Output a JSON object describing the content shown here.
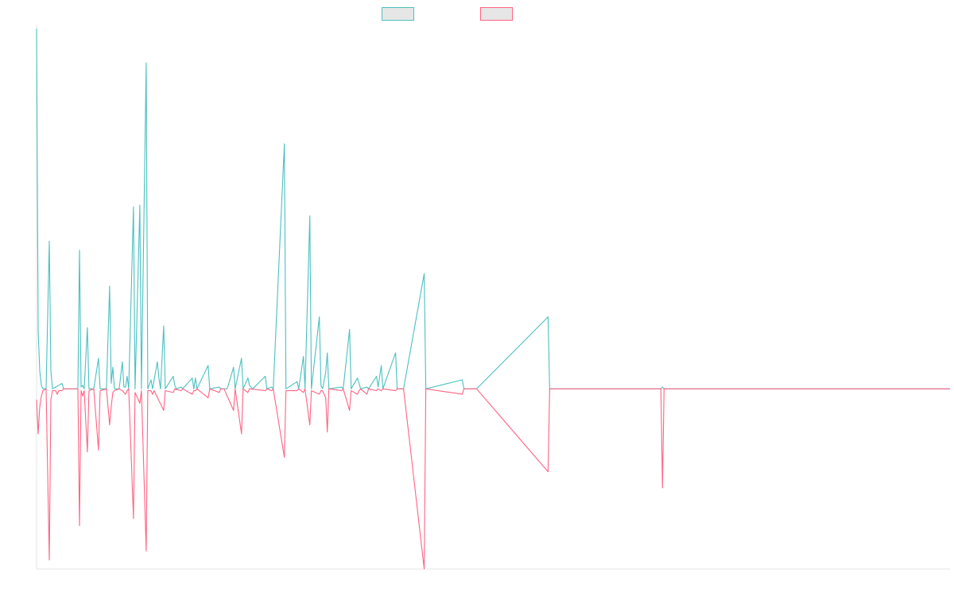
{
  "chart_data": {
    "type": "line",
    "title": "",
    "xlabel": "",
    "ylabel": "",
    "grid": false,
    "legend": {
      "placement": "top-center",
      "entries": [
        {
          "name": "",
          "stroke": "#4bc0c0",
          "fill": "#e6e6e6"
        },
        {
          "name": "",
          "stroke": "#ff6384",
          "fill": "#e6e6e6"
        }
      ]
    },
    "xlim": [
      0,
      575
    ],
    "ylim": [
      -100,
      200
    ],
    "series": [
      {
        "name": "",
        "color": "#4bc0c0",
        "points": [
          [
            0,
            200
          ],
          [
            1,
            32
          ],
          [
            2,
            10
          ],
          [
            3,
            2
          ],
          [
            4,
            0
          ],
          [
            6,
            0
          ],
          [
            8,
            82
          ],
          [
            9,
            10
          ],
          [
            10,
            0
          ],
          [
            12,
            1
          ],
          [
            14,
            2
          ],
          [
            16,
            3
          ],
          [
            17,
            0
          ],
          [
            20,
            0
          ],
          [
            26,
            0
          ],
          [
            27,
            77
          ],
          [
            28,
            1
          ],
          [
            29,
            2
          ],
          [
            30,
            0
          ],
          [
            32,
            34
          ],
          [
            33,
            0
          ],
          [
            36,
            0
          ],
          [
            39,
            17
          ],
          [
            40,
            0
          ],
          [
            44,
            0
          ],
          [
            46,
            57
          ],
          [
            47,
            3
          ],
          [
            48,
            12
          ],
          [
            49,
            0
          ],
          [
            52,
            0
          ],
          [
            54,
            15
          ],
          [
            55,
            1
          ],
          [
            56,
            1
          ],
          [
            57,
            7
          ],
          [
            58,
            0
          ],
          [
            61,
            101
          ],
          [
            62,
            0
          ],
          [
            65,
            102
          ],
          [
            66,
            0
          ],
          [
            69,
            181
          ],
          [
            70,
            0
          ],
          [
            72,
            5
          ],
          [
            73,
            0
          ],
          [
            76,
            15
          ],
          [
            77,
            6
          ],
          [
            78,
            0
          ],
          [
            80,
            35
          ],
          [
            81,
            0
          ],
          [
            86,
            7
          ],
          [
            87,
            2
          ],
          [
            88,
            0
          ],
          [
            91,
            1
          ],
          [
            92,
            0
          ],
          [
            98,
            6
          ],
          [
            99,
            0
          ],
          [
            100,
            6
          ],
          [
            101,
            0
          ],
          [
            108,
            13
          ],
          [
            109,
            0
          ],
          [
            115,
            1
          ],
          [
            116,
            0
          ],
          [
            118,
            0
          ],
          [
            120,
            0
          ],
          [
            124,
            12
          ],
          [
            125,
            0
          ],
          [
            129,
            17
          ],
          [
            130,
            0
          ],
          [
            133,
            6
          ],
          [
            134,
            2
          ],
          [
            135,
            1
          ],
          [
            136,
            0
          ],
          [
            144,
            7
          ],
          [
            145,
            0
          ],
          [
            148,
            1
          ],
          [
            149,
            0
          ],
          [
            156,
            136
          ],
          [
            157,
            0
          ],
          [
            164,
            4
          ],
          [
            165,
            0
          ],
          [
            168,
            18
          ],
          [
            169,
            0
          ],
          [
            172,
            96
          ],
          [
            173,
            0
          ],
          [
            178,
            40
          ],
          [
            179,
            2
          ],
          [
            180,
            0
          ],
          [
            182,
            9
          ],
          [
            183,
            20
          ],
          [
            184,
            0
          ],
          [
            192,
            1
          ],
          [
            193,
            0
          ],
          [
            197,
            33
          ],
          [
            198,
            0
          ],
          [
            202,
            6
          ],
          [
            203,
            3
          ],
          [
            204,
            0
          ],
          [
            208,
            1
          ],
          [
            209,
            0
          ],
          [
            214,
            7
          ],
          [
            215,
            1
          ],
          [
            217,
            13
          ],
          [
            218,
            0
          ],
          [
            226,
            20
          ],
          [
            227,
            0
          ],
          [
            231,
            0
          ],
          [
            244,
            64
          ],
          [
            245,
            0
          ],
          [
            268,
            5
          ],
          [
            269,
            0
          ],
          [
            277,
            0
          ],
          [
            322,
            40
          ],
          [
            323,
            0
          ],
          [
            393,
            0
          ],
          [
            394,
            1
          ],
          [
            395,
            0
          ],
          [
            575,
            0
          ]
        ]
      },
      {
        "name": "",
        "color": "#ff6384",
        "points": [
          [
            0,
            -6
          ],
          [
            1,
            -25
          ],
          [
            2,
            -10
          ],
          [
            3,
            -4
          ],
          [
            4,
            -1
          ],
          [
            6,
            0
          ],
          [
            8,
            -95
          ],
          [
            9,
            -6
          ],
          [
            10,
            -1
          ],
          [
            12,
            -1
          ],
          [
            13,
            -3
          ],
          [
            14,
            -1
          ],
          [
            16,
            -1
          ],
          [
            17,
            0
          ],
          [
            20,
            0
          ],
          [
            26,
            0
          ],
          [
            27,
            -76
          ],
          [
            28,
            -1
          ],
          [
            29,
            -4
          ],
          [
            30,
            -1
          ],
          [
            32,
            -35
          ],
          [
            33,
            -1
          ],
          [
            36,
            0
          ],
          [
            39,
            -34
          ],
          [
            40,
            -1
          ],
          [
            44,
            0
          ],
          [
            46,
            -20
          ],
          [
            47,
            -10
          ],
          [
            48,
            -2
          ],
          [
            49,
            -1
          ],
          [
            52,
            0
          ],
          [
            54,
            -1
          ],
          [
            56,
            -3
          ],
          [
            57,
            -1
          ],
          [
            58,
            0
          ],
          [
            61,
            -72
          ],
          [
            62,
            -2
          ],
          [
            65,
            -8
          ],
          [
            66,
            -1
          ],
          [
            69,
            -90
          ],
          [
            70,
            -1
          ],
          [
            72,
            -1
          ],
          [
            73,
            -3
          ],
          [
            74,
            -1
          ],
          [
            80,
            -12
          ],
          [
            81,
            -1
          ],
          [
            86,
            -2
          ],
          [
            87,
            0
          ],
          [
            91,
            -1
          ],
          [
            92,
            0
          ],
          [
            98,
            -3
          ],
          [
            99,
            -1
          ],
          [
            100,
            -1
          ],
          [
            101,
            0
          ],
          [
            108,
            -5
          ],
          [
            109,
            0
          ],
          [
            115,
            -2
          ],
          [
            116,
            0
          ],
          [
            118,
            0
          ],
          [
            124,
            -12
          ],
          [
            125,
            0
          ],
          [
            129,
            -25
          ],
          [
            130,
            0
          ],
          [
            133,
            -2
          ],
          [
            134,
            0
          ],
          [
            144,
            -1
          ],
          [
            145,
            0
          ],
          [
            148,
            -1
          ],
          [
            149,
            0
          ],
          [
            156,
            -38
          ],
          [
            157,
            -1
          ],
          [
            164,
            -1
          ],
          [
            165,
            0
          ],
          [
            168,
            -2
          ],
          [
            169,
            0
          ],
          [
            172,
            -20
          ],
          [
            173,
            -1
          ],
          [
            178,
            -3
          ],
          [
            179,
            -1
          ],
          [
            180,
            -1
          ],
          [
            182,
            -5
          ],
          [
            183,
            -24
          ],
          [
            184,
            0
          ],
          [
            192,
            -1
          ],
          [
            193,
            0
          ],
          [
            197,
            -12
          ],
          [
            198,
            -1
          ],
          [
            202,
            -3
          ],
          [
            203,
            -1
          ],
          [
            204,
            0
          ],
          [
            208,
            -3
          ],
          [
            209,
            0
          ],
          [
            214,
            -1
          ],
          [
            215,
            0
          ],
          [
            217,
            -1
          ],
          [
            218,
            0
          ],
          [
            226,
            -1
          ],
          [
            227,
            0
          ],
          [
            231,
            0
          ],
          [
            244,
            -100
          ],
          [
            245,
            0
          ],
          [
            268,
            -3
          ],
          [
            269,
            0
          ],
          [
            277,
            0
          ],
          [
            322,
            -46
          ],
          [
            323,
            0
          ],
          [
            393,
            0
          ],
          [
            394,
            -55
          ],
          [
            395,
            0
          ],
          [
            575,
            0
          ]
        ]
      }
    ]
  }
}
